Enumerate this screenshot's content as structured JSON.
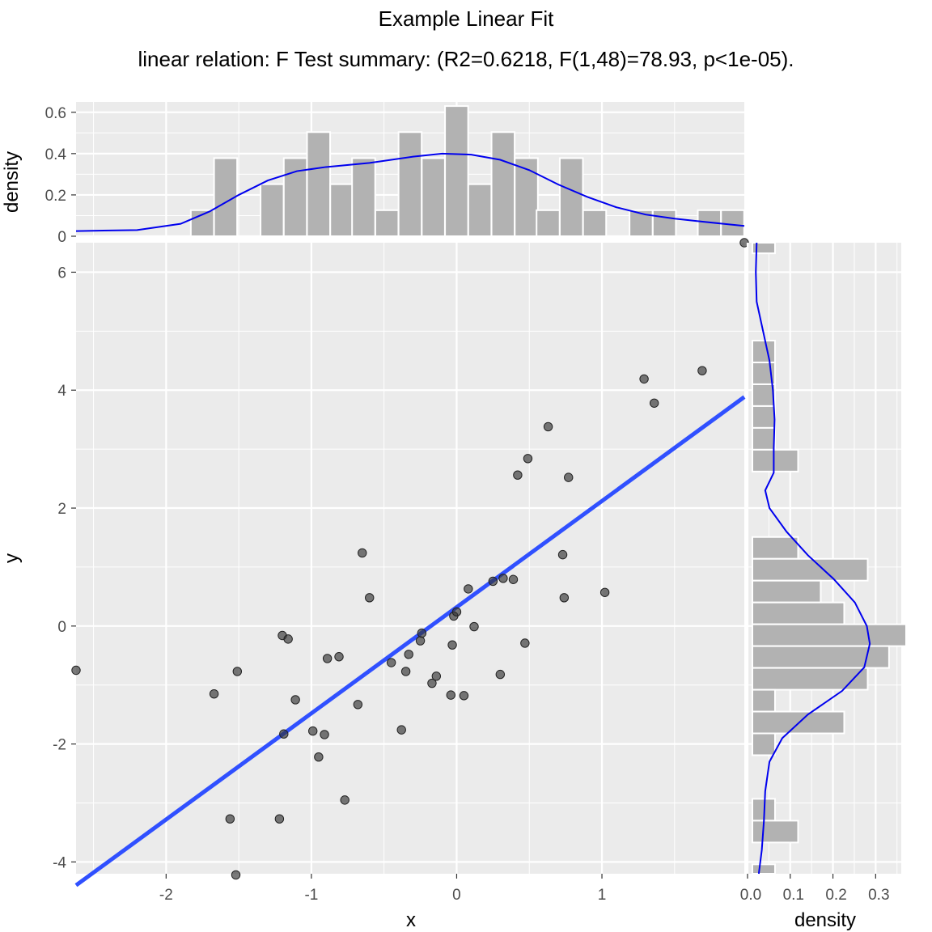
{
  "chart_data": {
    "type": "scatter",
    "title": "Example Linear Fit",
    "subtitle": "linear relation: F Test summary: (R2=0.6218, F(1,48)=78.93, p<1e-05).",
    "xlabel": "x",
    "ylabel": "y",
    "xlim": [
      -2.62,
      1.98
    ],
    "ylim": [
      -4.2,
      6.5
    ],
    "x_ticks": [
      "-2",
      "-1",
      "0",
      "1"
    ],
    "y_ticks": [
      "-4",
      "-2",
      "0",
      "2",
      "4",
      "6"
    ],
    "points": [
      {
        "x": -2.62,
        "y": -0.75
      },
      {
        "x": -1.67,
        "y": -1.15
      },
      {
        "x": -1.56,
        "y": -3.27
      },
      {
        "x": -1.52,
        "y": -4.22
      },
      {
        "x": -1.51,
        "y": -0.77
      },
      {
        "x": -1.22,
        "y": -3.27
      },
      {
        "x": -1.2,
        "y": -0.16
      },
      {
        "x": -1.19,
        "y": -1.83
      },
      {
        "x": -1.16,
        "y": -0.22
      },
      {
        "x": -1.11,
        "y": -1.25
      },
      {
        "x": -0.99,
        "y": -1.78
      },
      {
        "x": -0.95,
        "y": -2.22
      },
      {
        "x": -0.91,
        "y": -1.84
      },
      {
        "x": -0.89,
        "y": -0.55
      },
      {
        "x": -0.81,
        "y": -0.52
      },
      {
        "x": -0.77,
        "y": -2.95
      },
      {
        "x": -0.68,
        "y": -1.33
      },
      {
        "x": -0.65,
        "y": 1.24
      },
      {
        "x": -0.6,
        "y": 0.48
      },
      {
        "x": -0.45,
        "y": -0.62
      },
      {
        "x": -0.38,
        "y": -1.76
      },
      {
        "x": -0.35,
        "y": -0.77
      },
      {
        "x": -0.33,
        "y": -0.48
      },
      {
        "x": -0.25,
        "y": -0.25
      },
      {
        "x": -0.24,
        "y": -0.12
      },
      {
        "x": -0.17,
        "y": -0.97
      },
      {
        "x": -0.14,
        "y": -0.85
      },
      {
        "x": -0.04,
        "y": -1.17
      },
      {
        "x": -0.03,
        "y": -0.32
      },
      {
        "x": -0.02,
        "y": 0.17
      },
      {
        "x": 0.0,
        "y": 0.24
      },
      {
        "x": 0.05,
        "y": -1.18
      },
      {
        "x": 0.08,
        "y": 0.63
      },
      {
        "x": 0.12,
        "y": -0.01
      },
      {
        "x": 0.25,
        "y": 0.76
      },
      {
        "x": 0.32,
        "y": 0.81
      },
      {
        "x": 0.3,
        "y": -0.82
      },
      {
        "x": 0.39,
        "y": 0.79
      },
      {
        "x": 0.42,
        "y": 2.56
      },
      {
        "x": 0.47,
        "y": -0.29
      },
      {
        "x": 0.49,
        "y": 2.84
      },
      {
        "x": 0.63,
        "y": 3.38
      },
      {
        "x": 0.73,
        "y": 1.21
      },
      {
        "x": 0.74,
        "y": 0.48
      },
      {
        "x": 0.77,
        "y": 2.52
      },
      {
        "x": 1.02,
        "y": 0.57
      },
      {
        "x": 1.29,
        "y": 4.19
      },
      {
        "x": 1.36,
        "y": 3.78
      },
      {
        "x": 1.69,
        "y": 4.33
      },
      {
        "x": 1.98,
        "y": 6.5
      }
    ],
    "fit_line": {
      "intercept": 0.32,
      "slope": 1.8,
      "color": "#3050ff"
    },
    "point_color": "#333333",
    "top_marginal": {
      "ylabel": "density",
      "y_ticks": [
        "0",
        "0.2",
        "0.4",
        "0.6"
      ],
      "ylim": [
        0,
        0.65
      ],
      "bin_width": 0.159,
      "bins": [
        {
          "x0": -1.83,
          "density": 0.126
        },
        {
          "x0": -1.67,
          "density": 0.378
        },
        {
          "x0": -1.35,
          "density": 0.252
        },
        {
          "x0": -1.19,
          "density": 0.378
        },
        {
          "x0": -1.03,
          "density": 0.504
        },
        {
          "x0": -0.87,
          "density": 0.252
        },
        {
          "x0": -0.72,
          "density": 0.378
        },
        {
          "x0": -0.56,
          "density": 0.126
        },
        {
          "x0": -0.4,
          "density": 0.504
        },
        {
          "x0": -0.24,
          "density": 0.378
        },
        {
          "x0": -0.08,
          "density": 0.63
        },
        {
          "x0": 0.08,
          "density": 0.252
        },
        {
          "x0": 0.24,
          "density": 0.504
        },
        {
          "x0": 0.4,
          "density": 0.378
        },
        {
          "x0": 0.55,
          "density": 0.126
        },
        {
          "x0": 0.71,
          "density": 0.378
        },
        {
          "x0": 0.87,
          "density": 0.126
        },
        {
          "x0": 1.19,
          "density": 0.126
        },
        {
          "x0": 1.35,
          "density": 0.126
        },
        {
          "x0": 1.66,
          "density": 0.126
        },
        {
          "x0": 1.82,
          "density": 0.126
        }
      ],
      "density_curve": [
        [
          -2.62,
          0.025
        ],
        [
          -2.2,
          0.03
        ],
        [
          -1.9,
          0.06
        ],
        [
          -1.7,
          0.12
        ],
        [
          -1.5,
          0.2
        ],
        [
          -1.3,
          0.27
        ],
        [
          -1.1,
          0.315
        ],
        [
          -0.9,
          0.335
        ],
        [
          -0.6,
          0.355
        ],
        [
          -0.3,
          0.385
        ],
        [
          -0.1,
          0.4
        ],
        [
          0.1,
          0.395
        ],
        [
          0.3,
          0.37
        ],
        [
          0.5,
          0.32
        ],
        [
          0.7,
          0.25
        ],
        [
          0.9,
          0.19
        ],
        [
          1.1,
          0.14
        ],
        [
          1.3,
          0.105
        ],
        [
          1.5,
          0.085
        ],
        [
          1.7,
          0.07
        ],
        [
          1.98,
          0.05
        ]
      ],
      "curve_color": "#0000ee"
    },
    "right_marginal": {
      "xlabel": "density",
      "x_ticks": [
        "0.0",
        "0.1",
        "0.2",
        "0.3"
      ],
      "xlim": [
        0,
        0.36
      ],
      "bin_height": 0.37,
      "bins": [
        {
          "y0": 6.32,
          "density": 0.053
        },
        {
          "y0": 4.47,
          "density": 0.053
        },
        {
          "y0": 4.1,
          "density": 0.053
        },
        {
          "y0": 3.73,
          "density": 0.053
        },
        {
          "y0": 3.36,
          "density": 0.053
        },
        {
          "y0": 2.99,
          "density": 0.053
        },
        {
          "y0": 2.62,
          "density": 0.107
        },
        {
          "y0": 1.14,
          "density": 0.107
        },
        {
          "y0": 0.77,
          "density": 0.27
        },
        {
          "y0": 0.4,
          "density": 0.16
        },
        {
          "y0": 0.03,
          "density": 0.215
        },
        {
          "y0": -0.34,
          "density": 0.36
        },
        {
          "y0": -0.71,
          "density": 0.32
        },
        {
          "y0": -1.08,
          "density": 0.27
        },
        {
          "y0": -1.45,
          "density": 0.053
        },
        {
          "y0": -1.82,
          "density": 0.215
        },
        {
          "y0": -2.19,
          "density": 0.053
        },
        {
          "y0": -3.3,
          "density": 0.053
        },
        {
          "y0": -3.67,
          "density": 0.107
        },
        {
          "y0": -4.41,
          "density": 0.053
        }
      ],
      "density_curve": [
        [
          6.5,
          0.01
        ],
        [
          6.0,
          0.008
        ],
        [
          5.5,
          0.01
        ],
        [
          5.0,
          0.025
        ],
        [
          4.5,
          0.04
        ],
        [
          4.0,
          0.048
        ],
        [
          3.5,
          0.052
        ],
        [
          3.0,
          0.05
        ],
        [
          2.6,
          0.05
        ],
        [
          2.3,
          0.03
        ],
        [
          2.0,
          0.04
        ],
        [
          1.6,
          0.08
        ],
        [
          1.2,
          0.13
        ],
        [
          0.8,
          0.19
        ],
        [
          0.4,
          0.24
        ],
        [
          0.0,
          0.268
        ],
        [
          -0.3,
          0.275
        ],
        [
          -0.7,
          0.262
        ],
        [
          -1.1,
          0.21
        ],
        [
          -1.5,
          0.13
        ],
        [
          -1.9,
          0.07
        ],
        [
          -2.3,
          0.04
        ],
        [
          -2.8,
          0.03
        ],
        [
          -3.3,
          0.027
        ],
        [
          -3.8,
          0.022
        ],
        [
          -4.2,
          0.015
        ]
      ],
      "curve_color": "#0000ee"
    }
  }
}
